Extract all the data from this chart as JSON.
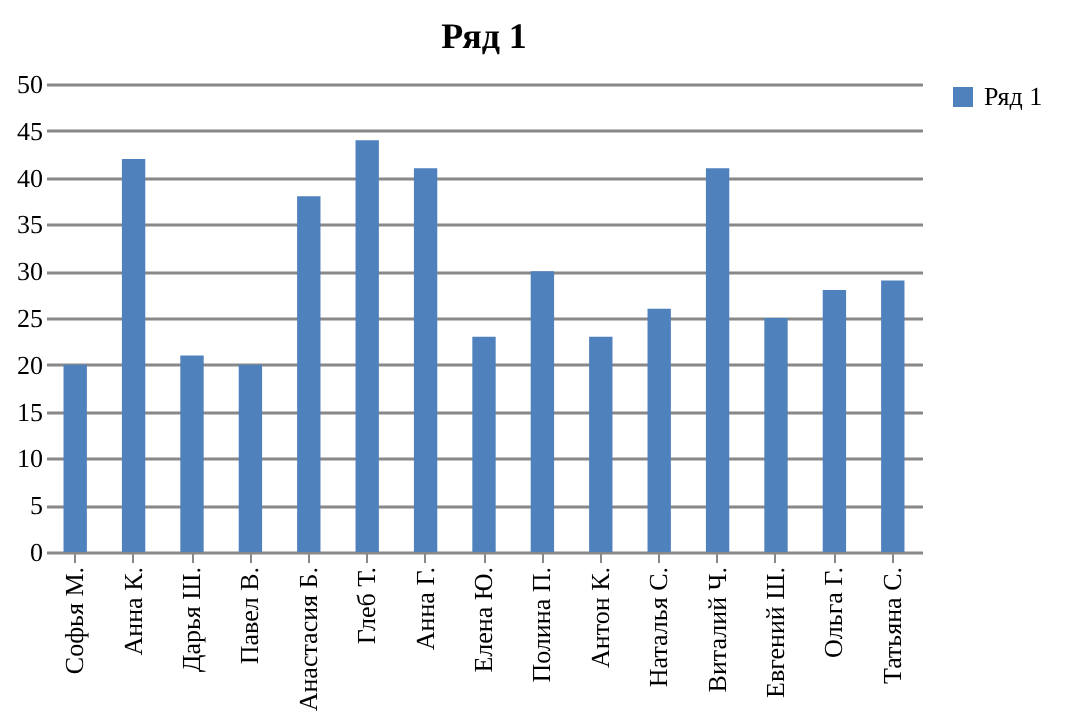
{
  "chart_data": {
    "type": "bar",
    "title": "Ряд 1",
    "categories": [
      "Софья М.",
      "Анна К.",
      "Дарья Ш.",
      "Павел В.",
      "Анастасия Б.",
      "Глеб Т.",
      "Анна Г.",
      "Елена Ю.",
      "Полина П.",
      "Антон К.",
      "Наталья С.",
      "Виталий Ч.",
      "Евгений Ш.",
      "Ольга Г.",
      "Татьяна С."
    ],
    "series": [
      {
        "name": "Ряд 1",
        "color": "#4f81bd",
        "values": [
          20,
          42,
          21,
          20,
          38,
          44,
          41,
          23,
          30,
          23,
          26,
          41,
          25,
          28,
          29
        ]
      }
    ],
    "ylim": [
      0,
      50
    ],
    "yticks": [
      0,
      5,
      10,
      15,
      20,
      25,
      30,
      35,
      40,
      45,
      50
    ],
    "grid": "y",
    "legend": "right"
  }
}
